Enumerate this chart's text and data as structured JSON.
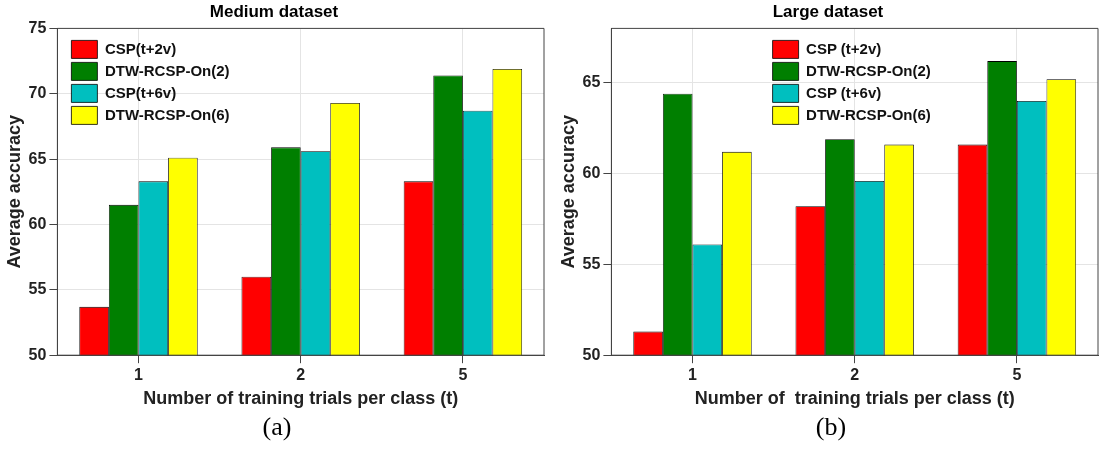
{
  "chart_data": [
    {
      "type": "bar",
      "title": "Medium dataset",
      "xlabel": "Number of training trials per class (t)",
      "ylabel": "Average accuracy",
      "categories": [
        "1",
        "2",
        "5"
      ],
      "series": [
        {
          "name": "CSP(t+2v)",
          "color": "#ff0000",
          "values": [
            53.7,
            56.0,
            63.3
          ]
        },
        {
          "name": "DTW-RCSP-On(2)",
          "color": "#007f00",
          "values": [
            61.5,
            65.9,
            71.4
          ]
        },
        {
          "name": "CSP(t+6v)",
          "color": "#00bfbf",
          "values": [
            63.3,
            65.6,
            68.7
          ]
        },
        {
          "name": "DTW-RCSP-On(6)",
          "color": "#ffff00",
          "values": [
            65.1,
            69.3,
            71.9
          ]
        }
      ],
      "ylim": [
        50,
        75
      ],
      "yticks": [
        50,
        55,
        60,
        65,
        70,
        75
      ],
      "grid": true,
      "legend": "top left",
      "annotations": [
        "(a)"
      ]
    },
    {
      "type": "bar",
      "title": "Large dataset",
      "xlabel": "Number of  training trials per class (t)",
      "ylabel": "Average accuracy",
      "categories": [
        "1",
        "2",
        "5"
      ],
      "series": [
        {
          "name": "CSP (t+2v)",
          "color": "#ff0000",
          "values": [
            51.3,
            58.2,
            61.6
          ]
        },
        {
          "name": "DTW-RCSP-On(2)",
          "color": "#007f00",
          "values": [
            64.4,
            61.9,
            66.2
          ]
        },
        {
          "name": "CSP (t+6v)",
          "color": "#00bfbf",
          "values": [
            56.1,
            59.6,
            64.0
          ]
        },
        {
          "name": "DTW-RCSP-On(6)",
          "color": "#ffff00",
          "values": [
            61.2,
            61.6,
            65.2
          ]
        }
      ],
      "ylim": [
        50,
        68
      ],
      "yticks": [
        50,
        55,
        60,
        65
      ],
      "grid": true,
      "legend": "top",
      "annotations": [
        "(b)"
      ]
    }
  ]
}
